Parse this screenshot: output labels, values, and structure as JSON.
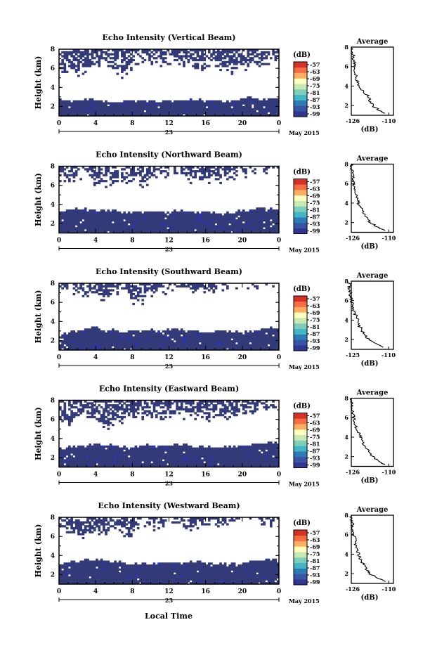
{
  "colorbar": {
    "unit": "(dB)",
    "ticks": [
      "-57",
      "-63",
      "-69",
      "-75",
      "-81",
      "-87",
      "-93",
      "-99"
    ],
    "colors": [
      "#313695",
      "#3a54a4",
      "#2c7bb6",
      "#41b6c4",
      "#7fcdbb",
      "#c7e9b4",
      "#ffffbf",
      "#fdae61",
      "#f46d43",
      "#d73027"
    ]
  },
  "x_axis": {
    "ticks": [
      "0",
      "4",
      "8",
      "12",
      "16",
      "20",
      "0"
    ],
    "day_label": "23",
    "month_label": "May 2015",
    "title": "Local Time"
  },
  "y_axis": {
    "title": "Height (km)",
    "ticks": [
      "2",
      "4",
      "6",
      "8"
    ]
  },
  "avg_axis": {
    "title": "Average",
    "xlabel": "(dB)",
    "xticks": [
      "-125",
      "-110"
    ],
    "yticks": [
      "2",
      "4",
      "6",
      "8"
    ]
  },
  "panels": [
    {
      "title": "Echo Intensity (Vertical Beam)",
      "avg_xticks": [
        "-126",
        "-110"
      ]
    },
    {
      "title": "Echo Intensity (Northward Beam)",
      "avg_xticks": [
        "-126",
        "-110"
      ]
    },
    {
      "title": "Echo Intensity (Southward Beam)",
      "avg_xticks": [
        "-125",
        "-110"
      ]
    },
    {
      "title": "Echo Intensity (Eastward Beam)",
      "avg_xticks": [
        "-126",
        "-110"
      ]
    },
    {
      "title": "Echo Intensity (Westward Beam)",
      "avg_xticks": [
        "-126",
        "-110"
      ]
    }
  ],
  "chart_data": [
    {
      "type": "heatmap",
      "title": "Echo Intensity (Vertical Beam)",
      "xlabel": "Local Time",
      "ylabel": "Height (km)",
      "xlim": [
        0,
        24
      ],
      "ylim": [
        1,
        8
      ],
      "clim": [
        -99,
        -57
      ],
      "lower_layer_top_km": [
        2.7,
        2.6,
        2.6,
        2.8,
        2.7,
        2.6,
        2.4,
        2.5,
        2.6,
        2.7,
        2.6,
        2.5,
        2.6,
        2.5,
        2.7,
        2.7,
        2.6,
        2.6,
        2.5,
        2.6,
        2.8,
        2.9,
        2.8,
        2.8,
        2.8
      ],
      "upper_layer_bottom_km": [
        6.0,
        5.6,
        5.8,
        6.4,
        6.5,
        6.6,
        6.0,
        5.8,
        6.8,
        7.0,
        7.2,
        6.6,
        6.8,
        7.0,
        6.6,
        6.2,
        6.7,
        6.8,
        6.5,
        6.0,
        6.3,
        6.6,
        6.9,
        7.0,
        7.2
      ],
      "average_profile": {
        "height_km": [
          1.2,
          2,
          3,
          4,
          5,
          6,
          7,
          7.5,
          8
        ],
        "intensity_db": [
          -112,
          -117,
          -119,
          -123,
          -124,
          -124.5,
          -125,
          -125.5,
          -126
        ],
        "xlim": [
          -126,
          -108
        ]
      }
    },
    {
      "type": "heatmap",
      "title": "Echo Intensity (Northward Beam)",
      "xlabel": "Local Time",
      "ylabel": "Height (km)",
      "xlim": [
        0,
        24
      ],
      "ylim": [
        1,
        8
      ],
      "clim": [
        -99,
        -57
      ],
      "lower_layer_top_km": [
        3.2,
        3.4,
        3.6,
        3.5,
        3.5,
        3.3,
        3.5,
        3.1,
        3.2,
        3.2,
        3.2,
        3.3,
        3.2,
        3.3,
        3.3,
        3.1,
        3.2,
        3.1,
        3.0,
        3.2,
        3.4,
        3.5,
        3.6,
        3.5,
        3.4
      ],
      "upper_layer_bottom_km": [
        7.2,
        6.5,
        7.4,
        7.6,
        6.6,
        6.4,
        7.0,
        6.8,
        7.0,
        6.4,
        7.2,
        7.6,
        7.6,
        7.5,
        7.0,
        6.8,
        6.9,
        7.2,
        7.0,
        7.4,
        7.5,
        7.8,
        8.0,
        8.0,
        8.0
      ],
      "average_profile": {
        "height_km": [
          1.2,
          2,
          3,
          4,
          5,
          6,
          7,
          8
        ],
        "intensity_db": [
          -112,
          -118,
          -121,
          -123,
          -124,
          -125,
          -125.5,
          -126
        ],
        "xlim": [
          -126,
          -108
        ]
      }
    },
    {
      "type": "heatmap",
      "title": "Echo Intensity (Southward Beam)",
      "xlabel": "Local Time",
      "ylabel": "Height (km)",
      "xlim": [
        0,
        24
      ],
      "ylim": [
        1,
        8
      ],
      "clim": [
        -99,
        -57
      ],
      "lower_layer_top_km": [
        2.6,
        2.8,
        3.0,
        3.2,
        3.5,
        3.0,
        3.1,
        2.9,
        2.9,
        3.0,
        3.2,
        2.9,
        3.1,
        3.2,
        3.0,
        3.0,
        2.9,
        2.9,
        3.0,
        3.0,
        2.8,
        3.0,
        3.2,
        3.4,
        3.2
      ],
      "upper_layer_bottom_km": [
        7.4,
        7.6,
        7.2,
        7.0,
        7.2,
        6.8,
        7.4,
        7.6,
        6.4,
        6.2,
        7.0,
        7.4,
        7.6,
        7.8,
        7.6,
        7.5,
        7.4,
        7.8,
        7.9,
        8.0,
        8.0,
        8.0,
        8.0,
        8.0,
        8.0
      ],
      "average_profile": {
        "height_km": [
          1.2,
          2,
          3,
          4,
          5,
          6,
          7,
          8
        ],
        "intensity_db": [
          -112,
          -118,
          -121,
          -122.5,
          -124,
          -125,
          -125.5,
          -126
        ],
        "xlim": [
          -125,
          -108
        ]
      }
    },
    {
      "type": "heatmap",
      "title": "Echo Intensity (Eastward Beam)",
      "xlabel": "Local Time",
      "ylabel": "Height (km)",
      "xlim": [
        0,
        24
      ],
      "ylim": [
        1,
        8
      ],
      "clim": [
        -99,
        -57
      ],
      "lower_layer_top_km": [
        3.0,
        3.1,
        3.2,
        3.2,
        3.5,
        3.3,
        3.3,
        3.1,
        3.0,
        3.3,
        3.3,
        3.2,
        3.3,
        3.4,
        3.3,
        3.2,
        3.2,
        3.0,
        3.1,
        3.2,
        3.3,
        3.4,
        3.6,
        3.6,
        3.6
      ],
      "upper_layer_bottom_km": [
        6.4,
        6.0,
        6.4,
        6.6,
        6.2,
        5.6,
        6.2,
        6.0,
        6.5,
        6.8,
        6.6,
        6.5,
        6.8,
        7.0,
        6.6,
        6.5,
        6.4,
        6.8,
        7.0,
        6.6,
        6.9,
        7.2,
        7.4,
        7.6,
        7.8
      ],
      "average_profile": {
        "height_km": [
          1.2,
          2,
          3,
          4,
          5,
          6,
          7,
          8
        ],
        "intensity_db": [
          -112,
          -117,
          -120,
          -122,
          -124,
          -125,
          -125.5,
          -126
        ],
        "xlim": [
          -126,
          -108
        ]
      }
    },
    {
      "type": "heatmap",
      "title": "Echo Intensity (Westward Beam)",
      "xlabel": "Local Time",
      "ylabel": "Height (km)",
      "xlim": [
        0,
        24
      ],
      "ylim": [
        1,
        8
      ],
      "clim": [
        -99,
        -57
      ],
      "lower_layer_top_km": [
        3.0,
        3.2,
        3.4,
        3.5,
        3.6,
        3.4,
        3.4,
        3.2,
        3.1,
        3.2,
        3.1,
        3.2,
        3.3,
        3.2,
        3.3,
        3.4,
        3.2,
        3.0,
        3.1,
        3.1,
        3.2,
        3.4,
        3.5,
        3.6,
        3.5
      ],
      "upper_layer_bottom_km": [
        7.0,
        6.8,
        6.4,
        6.6,
        6.8,
        6.6,
        7.2,
        6.5,
        6.8,
        7.4,
        7.6,
        7.2,
        7.8,
        7.8,
        7.4,
        7.2,
        7.4,
        7.6,
        7.8,
        8.0,
        8.0,
        8.0,
        7.6,
        7.8,
        8.0
      ],
      "average_profile": {
        "height_km": [
          1.2,
          2,
          3,
          4,
          5,
          6,
          7,
          8
        ],
        "intensity_db": [
          -112,
          -118,
          -121,
          -123,
          -124,
          -125,
          -125.5,
          -126
        ],
        "xlim": [
          -126,
          -108
        ]
      }
    }
  ]
}
